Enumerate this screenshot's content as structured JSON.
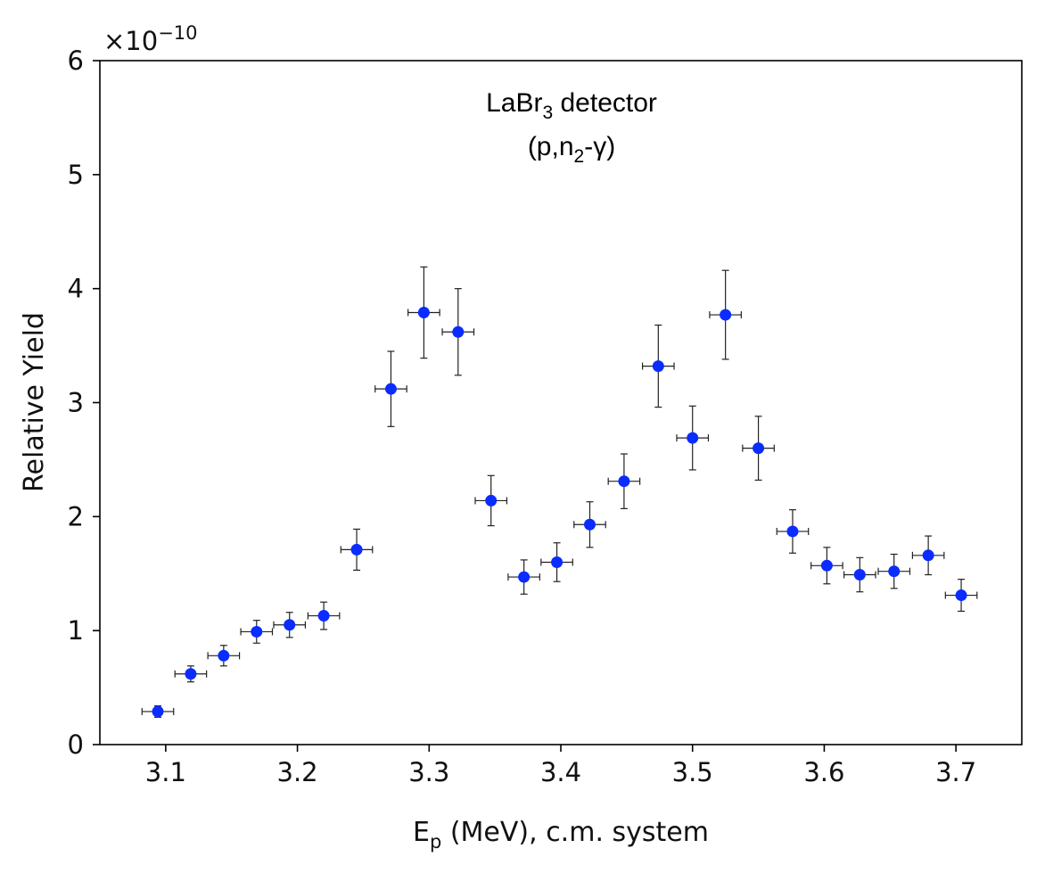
{
  "chart_data": {
    "type": "scatter",
    "title": "",
    "xlabel_main": "E",
    "xlabel_sub": "p",
    "xlabel_rest": " (MeV), c.m. system",
    "ylabel": "Relative Yield",
    "y_multiplier_base": "×10",
    "y_multiplier_exp": "−10",
    "xlim": [
      3.05,
      3.75
    ],
    "ylim": [
      0,
      6
    ],
    "xticks": [
      "3.1",
      "3.2",
      "3.3",
      "3.4",
      "3.5",
      "3.6",
      "3.7"
    ],
    "yticks": [
      "0",
      "1",
      "2",
      "3",
      "4",
      "5",
      "6"
    ],
    "annotation": {
      "line1_a": "LaBr",
      "line1_sub": "3",
      "line1_b": " detector",
      "line2_a": "(p,n",
      "line2_sub": "2",
      "line2_b": "-γ)"
    },
    "marker_color": "#0a2cff",
    "errorbar_color": "#222222",
    "x_error": 0.012,
    "series": [
      {
        "name": "LaBr3 (p,n2-γ)",
        "x": [
          3.094,
          3.119,
          3.144,
          3.169,
          3.194,
          3.22,
          3.245,
          3.271,
          3.296,
          3.322,
          3.347,
          3.372,
          3.397,
          3.422,
          3.448,
          3.474,
          3.5,
          3.525,
          3.55,
          3.576,
          3.602,
          3.627,
          3.653,
          3.679,
          3.704
        ],
        "y": [
          0.29,
          0.62,
          0.78,
          0.99,
          1.05,
          1.13,
          1.71,
          3.12,
          3.79,
          3.62,
          2.14,
          1.47,
          1.6,
          1.93,
          2.31,
          3.32,
          2.69,
          3.77,
          2.6,
          1.87,
          1.57,
          1.49,
          1.52,
          1.66,
          1.31
        ],
        "y_err": [
          0.05,
          0.07,
          0.09,
          0.1,
          0.11,
          0.12,
          0.18,
          0.33,
          0.4,
          0.38,
          0.22,
          0.15,
          0.17,
          0.2,
          0.24,
          0.36,
          0.28,
          0.39,
          0.28,
          0.19,
          0.16,
          0.15,
          0.15,
          0.17,
          0.14
        ]
      }
    ]
  }
}
